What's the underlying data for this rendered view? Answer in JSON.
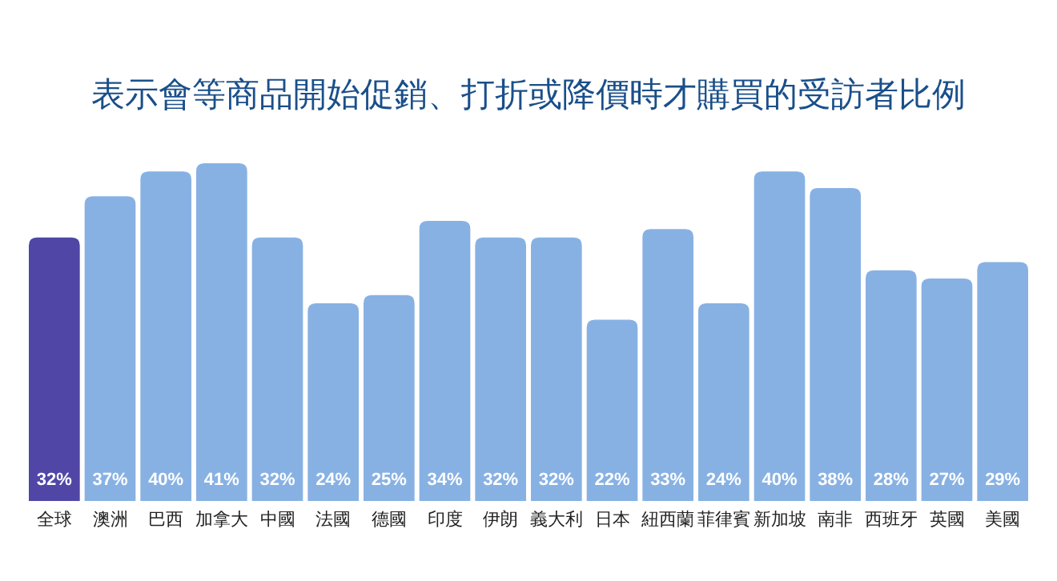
{
  "chart_data": {
    "type": "bar",
    "title": "表示會等商品開始促銷、打折或降價時才購買的受訪者比例",
    "categories": [
      "全球",
      "澳洲",
      "巴西",
      "加拿大",
      "中國",
      "法國",
      "德國",
      "印度",
      "伊朗",
      "義大利",
      "日本",
      "紐西蘭",
      "菲律賓",
      "新加坡",
      "南非",
      "西班牙",
      "英國",
      "美國"
    ],
    "values": [
      32,
      37,
      40,
      41,
      32,
      24,
      25,
      34,
      32,
      32,
      22,
      33,
      24,
      40,
      38,
      28,
      27,
      29
    ],
    "colors": [
      "#4f46a6",
      "#88b1e3",
      "#88b1e3",
      "#88b1e3",
      "#88b1e3",
      "#88b1e3",
      "#88b1e3",
      "#88b1e3",
      "#88b1e3",
      "#88b1e3",
      "#88b1e3",
      "#88b1e3",
      "#88b1e3",
      "#88b1e3",
      "#88b1e3",
      "#88b1e3",
      "#88b1e3",
      "#88b1e3"
    ],
    "value_labels": [
      "32%",
      "37%",
      "40%",
      "41%",
      "32%",
      "24%",
      "25%",
      "34%",
      "32%",
      "32%",
      "22%",
      "33%",
      "24%",
      "40%",
      "38%",
      "28%",
      "27%",
      "29%"
    ]
  }
}
